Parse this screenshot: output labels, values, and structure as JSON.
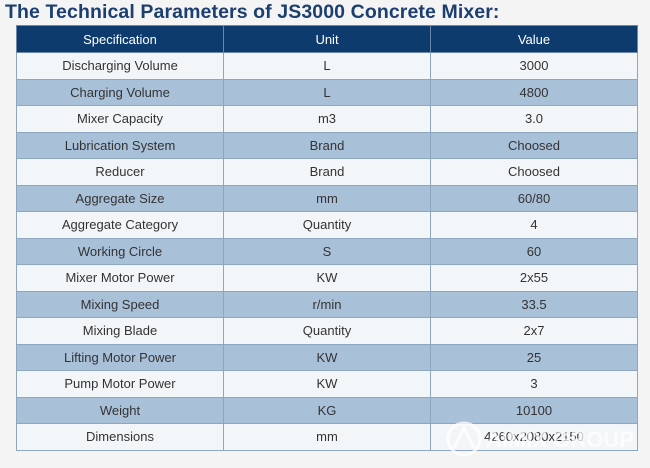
{
  "title": "The Technical Parameters of JS3000 Concrete Mixer:",
  "columns": [
    "Specification",
    "Unit",
    "Value"
  ],
  "rows": [
    [
      "Discharging Volume",
      "L",
      "3000"
    ],
    [
      "Charging Volume",
      "L",
      "4800"
    ],
    [
      "Mixer Capacity",
      "m3",
      "3.0"
    ],
    [
      "Lubrication System",
      "Brand",
      "Choosed"
    ],
    [
      "Reducer",
      "Brand",
      "Choosed"
    ],
    [
      "Aggregate Size",
      "mm",
      "60/80"
    ],
    [
      "Aggregate Category",
      "Quantity",
      "4"
    ],
    [
      "Working Circle",
      "S",
      "60"
    ],
    [
      "Mixer Motor Power",
      "KW",
      "2x55"
    ],
    [
      "Mixing Speed",
      "r/min",
      "33.5"
    ],
    [
      "Mixing Blade",
      "Quantity",
      "2x7"
    ],
    [
      "Lifting Motor Power",
      "KW",
      "25"
    ],
    [
      "Pump Motor Power",
      "KW",
      "3"
    ],
    [
      "Weight",
      "KG",
      "10100"
    ],
    [
      "Dimensions",
      "mm",
      "4260x2080x2150"
    ]
  ],
  "watermark": "AIMIX GROUP",
  "colors": {
    "title": "#1d3f70",
    "header_bg": "#0e3b6e",
    "row_light": "#f3f6f9",
    "row_dark": "#a9c0d9"
  }
}
